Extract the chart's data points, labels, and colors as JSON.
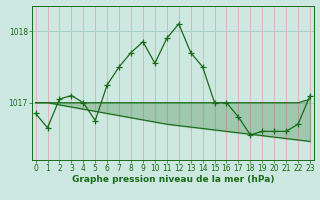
{
  "x": [
    0,
    1,
    2,
    3,
    4,
    5,
    6,
    7,
    8,
    9,
    10,
    11,
    12,
    13,
    14,
    15,
    16,
    17,
    18,
    19,
    20,
    21,
    22,
    23
  ],
  "y_main": [
    1016.85,
    1016.65,
    1017.05,
    1017.1,
    1017.0,
    1016.75,
    1017.25,
    1017.5,
    1017.7,
    1017.85,
    1017.55,
    1017.9,
    1018.1,
    1017.7,
    1017.5,
    1017.0,
    1017.0,
    1016.8,
    1016.55,
    1016.6,
    1016.6,
    1016.6,
    1016.7,
    1017.1
  ],
  "y_smooth_top": [
    1017.0,
    1017.0,
    1017.0,
    1017.0,
    1017.0,
    1017.0,
    1017.0,
    1017.0,
    1017.0,
    1017.0,
    1017.0,
    1017.0,
    1017.0,
    1017.0,
    1017.0,
    1017.0,
    1017.0,
    1017.0,
    1017.0,
    1017.0,
    1017.0,
    1017.0,
    1017.0,
    1017.05
  ],
  "y_smooth_bot": [
    1017.0,
    1017.0,
    1016.97,
    1016.94,
    1016.91,
    1016.88,
    1016.85,
    1016.82,
    1016.79,
    1016.76,
    1016.73,
    1016.7,
    1016.68,
    1016.66,
    1016.64,
    1016.62,
    1016.6,
    1016.58,
    1016.56,
    1016.54,
    1016.52,
    1016.5,
    1016.48,
    1016.46
  ],
  "line_color": "#1a6b1a",
  "bg_color": "#cce8e0",
  "grid_h_color": "#aacfc8",
  "grid_v_color": "#ffb0b8",
  "xlabel": "Graphe pression niveau de la mer (hPa)",
  "ylim_min": 1016.2,
  "ylim_max": 1018.35,
  "yticks": [
    1017,
    1018
  ],
  "xticks": [
    0,
    1,
    2,
    3,
    4,
    5,
    6,
    7,
    8,
    9,
    10,
    11,
    12,
    13,
    14,
    15,
    16,
    17,
    18,
    19,
    20,
    21,
    22,
    23
  ],
  "tick_fontsize": 5.5,
  "xlabel_fontsize": 6.5
}
